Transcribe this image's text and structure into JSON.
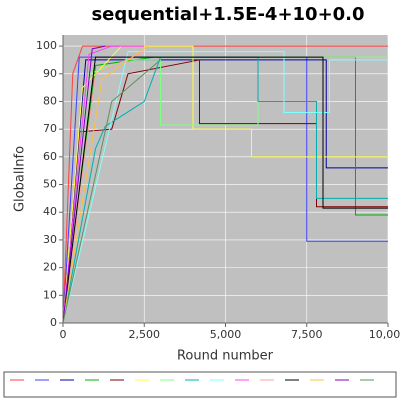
{
  "chart_data": {
    "type": "line",
    "title": "sequential+1.5E-4+10+0.0",
    "xlabel": "Round number",
    "ylabel": "GlobalInfo",
    "xlim": [
      0,
      10000
    ],
    "xticks": [
      0,
      {
        "value": 2500,
        "label": "2,500"
      },
      {
        "value": 5000,
        "label": "5,000"
      },
      {
        "value": 7500,
        "label": "7,500"
      },
      {
        "value": 10000,
        "label": "10,000"
      }
    ],
    "ylim": [
      0,
      104
    ],
    "yticks": [
      0,
      10,
      20,
      30,
      40,
      50,
      60,
      70,
      80,
      90,
      100
    ],
    "grid": true,
    "legend": "bottom",
    "series": [
      {
        "color": "#ff4040",
        "x": [
          0,
          300,
          600,
          10000
        ],
        "values": [
          0,
          90,
          100,
          100
        ]
      },
      {
        "color": "#4040ff",
        "x": [
          0,
          500,
          7500,
          7500,
          10000
        ],
        "values": [
          0,
          96,
          96,
          29.5,
          29.5
        ]
      },
      {
        "color": "#0000a0",
        "x": [
          0,
          700,
          8100,
          8100,
          10000
        ],
        "values": [
          0,
          95,
          95,
          56,
          56
        ]
      },
      {
        "color": "#00b000",
        "x": [
          0,
          1000,
          2800,
          9000,
          9000,
          10000
        ],
        "values": [
          0,
          93,
          96,
          96,
          39,
          39
        ]
      },
      {
        "color": "#800000",
        "x": [
          0,
          500,
          1500,
          2000,
          4200,
          4200,
          7800,
          7800,
          10000
        ],
        "values": [
          0,
          69,
          70,
          90,
          95,
          72,
          72,
          42,
          42
        ]
      },
      {
        "color": "#ffff40",
        "x": [
          0,
          600,
          1800,
          4000,
          4000,
          5800,
          5800,
          10000
        ],
        "values": [
          0,
          85,
          100,
          100,
          70,
          70,
          60,
          60
        ]
      },
      {
        "color": "#80ff80",
        "x": [
          0,
          800,
          2000,
          3000,
          3000,
          6000,
          6000,
          10000
        ],
        "values": [
          0,
          90,
          95,
          95,
          71.5,
          71.5,
          96,
          96
        ]
      },
      {
        "color": "#00b0b0",
        "x": [
          0,
          1000,
          1300,
          2500,
          3000,
          6000,
          6000,
          7800,
          7800,
          10000
        ],
        "values": [
          0,
          63,
          71,
          80,
          96,
          96,
          80,
          80,
          45,
          45
        ]
      },
      {
        "color": "#80ffff",
        "x": [
          0,
          2000,
          6800,
          6800,
          8200,
          8200,
          10000
        ],
        "values": [
          0,
          98,
          98,
          76,
          76,
          95,
          95
        ]
      },
      {
        "color": "#ff40ff",
        "x": [
          0,
          800,
          1500,
          2500
        ],
        "values": [
          0,
          97,
          100,
          100
        ]
      },
      {
        "color": "#ffa0a0",
        "x": [
          0,
          1000,
          2500
        ],
        "values": [
          0,
          90,
          98
        ]
      },
      {
        "color": "#000000",
        "x": [
          0,
          1000,
          8000,
          8000,
          10000
        ],
        "values": [
          0,
          96,
          96,
          41.5,
          41.5
        ]
      },
      {
        "color": "#ffc040",
        "x": [
          0,
          1200,
          2600
        ],
        "values": [
          0,
          88,
          100
        ]
      },
      {
        "color": "#8000c0",
        "x": [
          0,
          900,
          1300
        ],
        "values": [
          0,
          99,
          100
        ]
      },
      {
        "color": "#609060",
        "x": [
          0,
          1500,
          3000
        ],
        "values": [
          0,
          80,
          95
        ]
      }
    ]
  }
}
